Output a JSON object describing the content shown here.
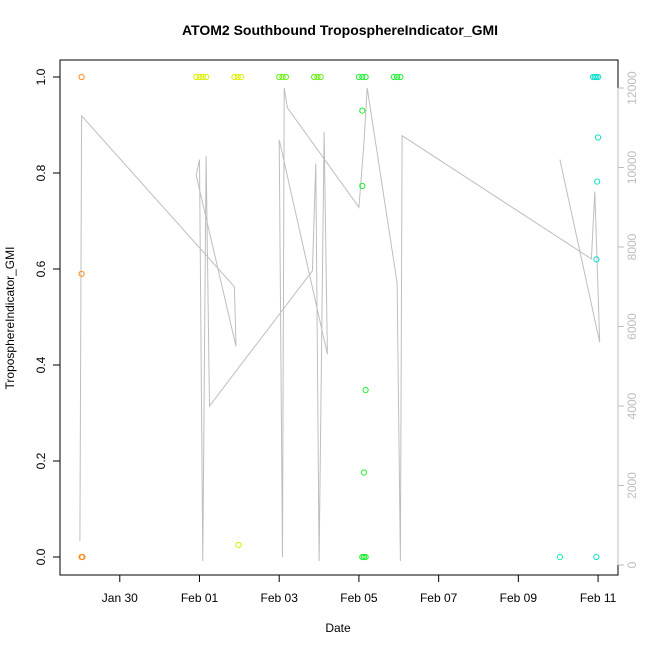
{
  "chart_data": {
    "type": "scatter",
    "title": "ATOM2 Southbound TroposphereIndicator_GMI",
    "xlabel": "Date",
    "ylabel": "TroposphereIndicator_GMI",
    "x_ticks": [
      "Jan 30",
      "Feb 01",
      "Feb 03",
      "Feb 05",
      "Feb 07",
      "Feb 09",
      "Feb 11"
    ],
    "y_ticks": [
      "0.0",
      "0.2",
      "0.4",
      "0.6",
      "0.8",
      "1.0"
    ],
    "y2_ticks": [
      "0",
      "2000",
      "4000",
      "6000",
      "8000",
      "10000",
      "12000"
    ],
    "xlim": [
      "2017-01-28T12:00",
      "2017-02-11T12:00"
    ],
    "ylim": [
      0,
      1
    ],
    "y2lim": [
      0,
      12000
    ],
    "grid": false,
    "colors": {
      "altitude_line": "#bebebe",
      "right_axis": "#bdbdbd",
      "axis": "#000000"
    },
    "series": [
      {
        "color": "#ff8c1a",
        "points": [
          [
            "2017-01-29T01:00",
            1.0
          ],
          [
            "2017-01-29T01:00",
            0.59
          ],
          [
            "2017-01-29T01:00",
            0.0
          ],
          [
            "2017-01-29T01:30",
            0.0
          ]
        ]
      },
      {
        "color": "#ddee00",
        "points": [
          [
            "2017-01-31T22:00",
            1.0
          ],
          [
            "2017-02-01T00:00",
            1.0
          ],
          [
            "2017-02-01T02:00",
            1.0
          ],
          [
            "2017-02-01T04:00",
            1.0
          ],
          [
            "2017-02-01T21:00",
            1.0
          ],
          [
            "2017-02-01T23:00",
            1.0
          ],
          [
            "2017-02-02T01:00",
            1.0
          ],
          [
            "2017-02-01T23:30",
            0.025
          ]
        ]
      },
      {
        "color": "#66ee11",
        "points": [
          [
            "2017-02-03T00:00",
            1.0
          ],
          [
            "2017-02-03T02:00",
            1.0
          ],
          [
            "2017-02-03T04:00",
            1.0
          ],
          [
            "2017-02-03T21:00",
            1.0
          ],
          [
            "2017-02-03T23:00",
            1.0
          ],
          [
            "2017-02-04T01:00",
            1.0
          ]
        ]
      },
      {
        "color": "#22ee33",
        "points": [
          [
            "2017-02-05T00:00",
            1.0
          ],
          [
            "2017-02-05T02:00",
            1.0
          ],
          [
            "2017-02-05T04:00",
            1.0
          ],
          [
            "2017-02-05T21:00",
            1.0
          ],
          [
            "2017-02-05T23:00",
            1.0
          ],
          [
            "2017-02-06T01:00",
            1.0
          ],
          [
            "2017-02-05T02:00",
            0.93
          ],
          [
            "2017-02-05T02:00",
            0.773
          ],
          [
            "2017-02-05T04:00",
            0.348
          ],
          [
            "2017-02-05T03:00",
            0.176
          ],
          [
            "2017-02-05T02:00",
            0.0
          ],
          [
            "2017-02-05T03:00",
            0.0
          ],
          [
            "2017-02-05T04:00",
            0.0
          ]
        ]
      },
      {
        "color": "#22eebb",
        "points": [
          [
            "2017-02-10T01:00",
            0.0
          ]
        ]
      },
      {
        "color": "#11ddcc",
        "points": [
          [
            "2017-02-10T21:00",
            1.0
          ],
          [
            "2017-02-10T22:00",
            1.0
          ],
          [
            "2017-02-10T23:00",
            1.0
          ],
          [
            "2017-02-11T00:00",
            1.0
          ],
          [
            "2017-02-11T00:00",
            0.874
          ],
          [
            "2017-02-10T23:30",
            0.782
          ],
          [
            "2017-02-10T23:00",
            0.62
          ],
          [
            "2017-02-10T23:00",
            0.0
          ]
        ]
      }
    ],
    "altitude_line": {
      "color": "#bebebe",
      "axis": "right",
      "points": [
        [
          "2017-01-29T00:00",
          600
        ],
        [
          "2017-01-29T01:00",
          11300
        ],
        [
          "2017-02-01T21:00",
          7000
        ],
        [
          "2017-02-01T22:00",
          5500
        ],
        [
          "2017-01-31T22:00",
          9800
        ],
        [
          "2017-02-01T00:00",
          10200
        ],
        [
          "2017-02-01T02:00",
          100
        ],
        [
          "2017-02-01T04:00",
          10300
        ],
        [
          "2017-02-01T06:00",
          4000
        ],
        [
          "2017-02-03T20:00",
          7400
        ],
        [
          "2017-02-03T22:00",
          10100
        ],
        [
          "2017-02-04T00:00",
          100
        ],
        [
          "2017-02-04T03:00",
          10900
        ],
        [
          "2017-02-04T05:00",
          5300
        ],
        [
          "2017-02-03T00:00",
          10700
        ],
        [
          "2017-02-03T02:00",
          200
        ],
        [
          "2017-02-03T03:00",
          12000
        ],
        [
          "2017-02-03T05:00",
          11500
        ],
        [
          "2017-02-05T00:00",
          9000
        ],
        [
          "2017-02-05T03:00",
          10600
        ],
        [
          "2017-02-05T05:00",
          12000
        ],
        [
          "2017-02-05T23:00",
          7100
        ],
        [
          "2017-02-06T01:00",
          100
        ],
        [
          "2017-02-06T02:00",
          10800
        ],
        [
          "2017-02-10T20:00",
          7700
        ],
        [
          "2017-02-10T22:00",
          9400
        ],
        [
          "2017-02-11T01:00",
          5600
        ],
        [
          "2017-02-10T01:00",
          10200
        ]
      ]
    }
  }
}
